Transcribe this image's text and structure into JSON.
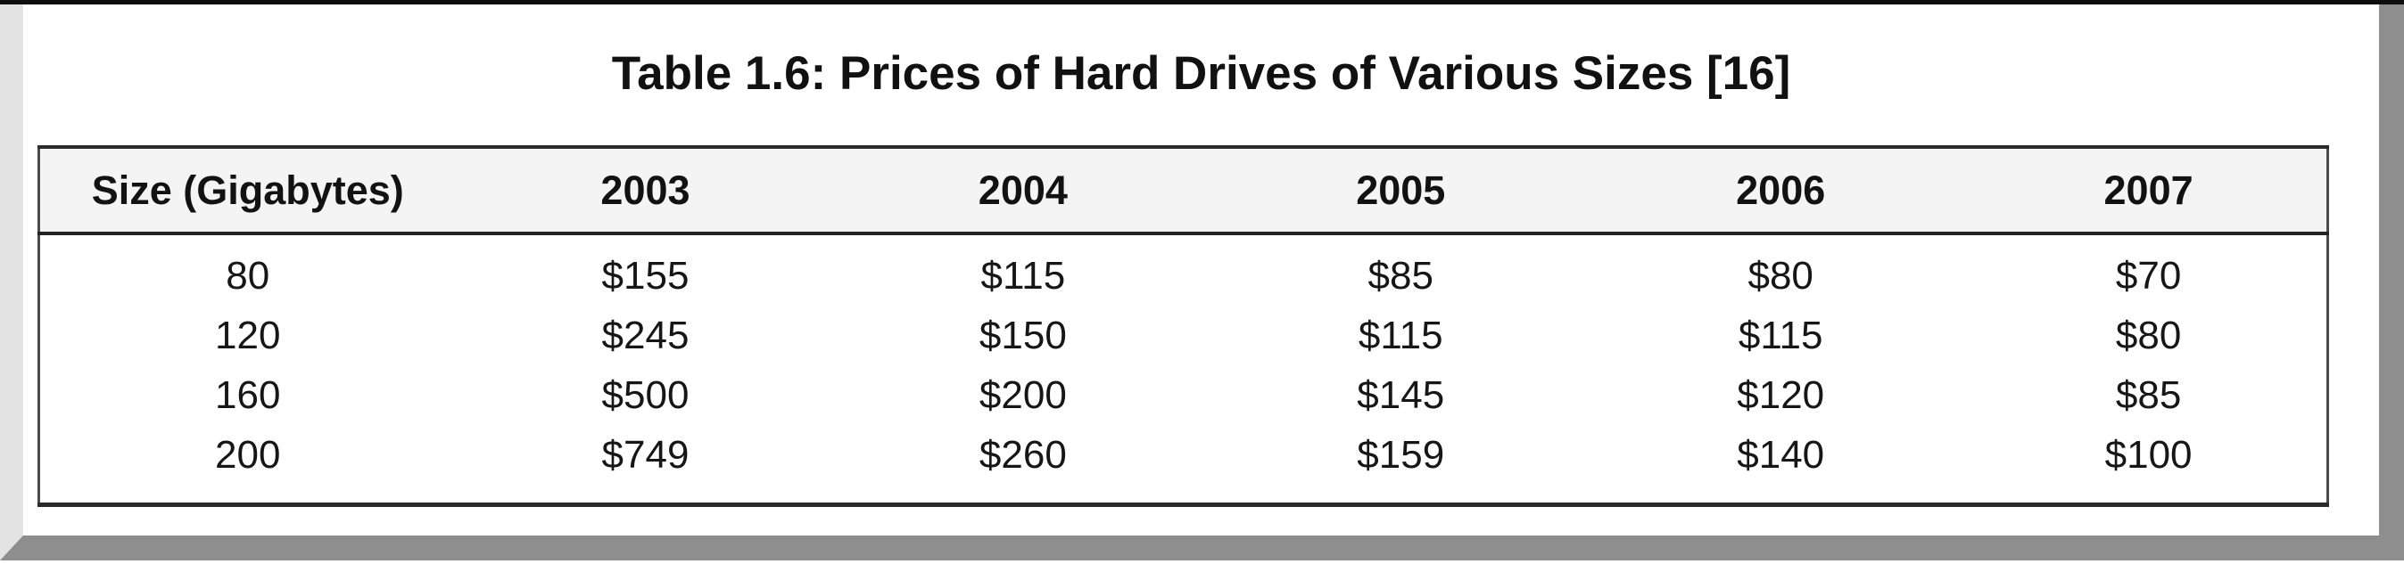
{
  "page": {
    "title": "Table 1.6: Prices of Hard Drives of Various Sizes [16]"
  },
  "table": {
    "columns": [
      "Size (Gigabytes)",
      "2003",
      "2004",
      "2005",
      "2006",
      "2007"
    ],
    "rows": [
      [
        "80",
        "$155",
        "$115",
        "$85",
        "$80",
        "$70"
      ],
      [
        "120",
        "$245",
        "$150",
        "$115",
        "$115",
        "$80"
      ],
      [
        "160",
        "$500",
        "$200",
        "$145",
        "$120",
        "$85"
      ],
      [
        "200",
        "$749",
        "$260",
        "$159",
        "$140",
        "$100"
      ]
    ]
  },
  "colors": {
    "header_background": "#f4f4f5",
    "table_border": "#2b2b2b",
    "frame_left": "#e3e3e3",
    "frame_right": "#8e8e8e",
    "frame_bottom": "#8e8e8e",
    "frame_edge": "#0e0e0e",
    "text": "#141414"
  },
  "chart_data": {
    "type": "table",
    "title": "Table 1.6: Prices of Hard Drives of Various Sizes [16]",
    "categories": [
      80,
      120,
      160,
      200
    ],
    "category_label": "Size (Gigabytes)",
    "series": [
      {
        "name": "2003",
        "values": [
          155,
          245,
          500,
          749
        ]
      },
      {
        "name": "2004",
        "values": [
          115,
          150,
          200,
          260
        ]
      },
      {
        "name": "2005",
        "values": [
          85,
          115,
          145,
          159
        ]
      },
      {
        "name": "2006",
        "values": [
          80,
          115,
          120,
          140
        ]
      },
      {
        "name": "2007",
        "values": [
          70,
          80,
          85,
          100
        ]
      }
    ],
    "unit": "USD"
  }
}
